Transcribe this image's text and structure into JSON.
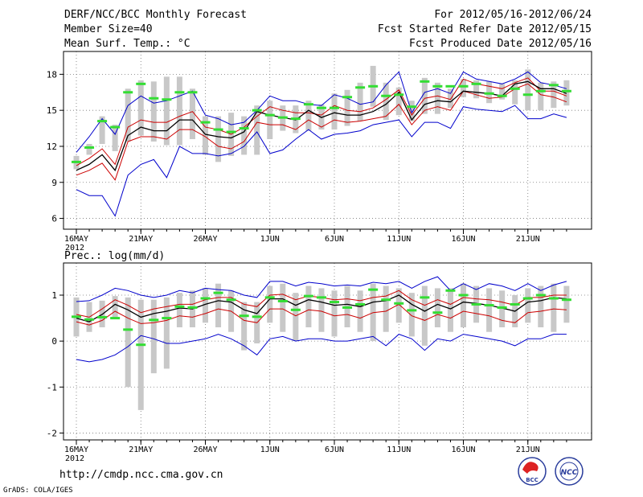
{
  "header": {
    "title": "DERF/NCC/BCC Monthly Forecast",
    "member_size": "Member Size=40",
    "variable": "Mean Surf. Temp.: °C",
    "period": "For 2012/05/16-2012/06/24",
    "started": "Fcst Started Refer Date 2012/05/15",
    "produced": "Fcst Produced Date 2012/05/16"
  },
  "footer": {
    "url": "http://cmdp.ncc.cma.gov.cn",
    "credit": "GrADS: COLA/IGES",
    "logo1_text": "BCC",
    "logo2_text": "NCC"
  },
  "colors": {
    "median": "#000000",
    "inner": "#cc0000",
    "outer": "#0000cc",
    "bar": "#c8c8c8",
    "marker": "#33dd33",
    "grid": "#777777"
  },
  "chart_data": [
    {
      "type": "line",
      "title": "Mean Surf. Temp.: °C",
      "x_tick_labels": [
        "16MAY",
        "21MAY",
        "26MAY",
        "1JUN",
        "6JUN",
        "11JUN",
        "16JUN",
        "21JUN"
      ],
      "x_year_label": "2012",
      "days": 39,
      "y_ticks": [
        6,
        9,
        12,
        15,
        18
      ],
      "ylim": [
        5.1,
        19.9
      ],
      "series": [
        {
          "name": "max",
          "values": [
            11.5,
            12.8,
            14.3,
            13.0,
            15.4,
            16.2,
            15.6,
            15.8,
            16.2,
            16.6,
            14.6,
            14.3,
            13.8,
            14.0,
            15.0,
            16.2,
            15.8,
            15.8,
            15.5,
            15.4,
            16.3,
            16.0,
            15.5,
            15.7,
            17.1,
            18.2,
            14.8,
            16.5,
            16.8,
            16.4,
            18.2,
            17.6,
            17.4,
            17.2,
            17.6,
            18.2,
            17.3,
            17.1,
            16.8
          ]
        },
        {
          "name": "upper",
          "values": [
            10.4,
            11.0,
            11.8,
            10.5,
            13.6,
            14.2,
            14.0,
            14.0,
            14.5,
            14.9,
            13.6,
            13.4,
            13.0,
            13.6,
            14.5,
            15.3,
            15.0,
            14.8,
            14.8,
            14.6,
            15.4,
            15.0,
            14.9,
            15.2,
            15.9,
            16.7,
            14.6,
            16.0,
            16.2,
            15.9,
            17.6,
            17.2,
            17.0,
            16.8,
            17.3,
            17.7,
            16.6,
            16.6,
            16.2
          ]
        },
        {
          "name": "median",
          "values": [
            10.0,
            10.5,
            11.3,
            10.0,
            12.9,
            13.6,
            13.3,
            13.3,
            14.2,
            14.2,
            13.0,
            12.8,
            12.7,
            13.2,
            14.9,
            14.6,
            14.4,
            14.2,
            15.0,
            14.4,
            14.8,
            14.6,
            14.6,
            14.9,
            15.5,
            16.5,
            14.2,
            15.5,
            15.8,
            15.7,
            16.6,
            16.5,
            16.4,
            16.2,
            17.2,
            17.4,
            16.8,
            16.8,
            16.4
          ]
        },
        {
          "name": "lower",
          "values": [
            9.6,
            10.0,
            10.6,
            9.2,
            12.4,
            12.8,
            12.8,
            12.6,
            13.4,
            13.4,
            12.8,
            12.0,
            11.8,
            12.4,
            14.0,
            13.8,
            13.8,
            13.4,
            14.2,
            13.6,
            14.2,
            14.0,
            14.1,
            14.3,
            14.5,
            15.5,
            13.8,
            15.0,
            15.3,
            15.0,
            16.6,
            16.3,
            16.0,
            16.1,
            16.8,
            17.2,
            16.3,
            16.1,
            15.7
          ]
        },
        {
          "name": "min",
          "values": [
            8.4,
            7.9,
            7.9,
            6.2,
            9.6,
            10.5,
            10.9,
            9.4,
            12.0,
            11.4,
            11.4,
            11.2,
            11.4,
            12.0,
            13.2,
            11.4,
            11.7,
            12.6,
            13.4,
            12.6,
            13.0,
            13.1,
            13.3,
            13.8,
            14.0,
            14.2,
            12.8,
            14.0,
            14.0,
            13.5,
            15.3,
            15.1,
            15.0,
            14.9,
            15.4,
            14.3,
            14.3,
            14.7,
            14.4
          ]
        },
        {
          "name": "observed",
          "values": [
            10.7,
            11.9,
            14.1,
            13.6,
            16.5,
            17.2,
            16.0,
            15.9,
            16.5,
            16.5,
            14.0,
            13.4,
            13.2,
            13.5,
            15.0,
            14.6,
            14.4,
            14.3,
            15.5,
            15.2,
            15.2,
            16.1,
            16.9,
            17.0,
            16.2,
            16.3,
            15.3,
            17.4,
            17.0,
            17.0,
            17.0,
            17.2,
            16.4,
            16.2,
            16.8,
            16.3,
            16.6,
            17.1,
            16.6
          ]
        },
        {
          "name": "box_top",
          "values": [
            11.2,
            12.2,
            14.5,
            13.8,
            16.8,
            17.5,
            17.4,
            17.8,
            17.8,
            16.8,
            14.5,
            14.5,
            14.8,
            14.5,
            15.4,
            15.8,
            15.4,
            15.4,
            15.8,
            15.5,
            16.4,
            16.7,
            17.3,
            18.7,
            17.3,
            16.9,
            15.8,
            17.7,
            17.3,
            16.8,
            17.6,
            17.5,
            17.4,
            17.2,
            17.5,
            18.4,
            17.3,
            17.4,
            17.5
          ]
        },
        {
          "name": "box_bottom",
          "values": [
            10.1,
            11.3,
            12.2,
            11.6,
            12.4,
            12.9,
            12.4,
            12.1,
            12.1,
            12.6,
            11.3,
            10.7,
            11.2,
            11.3,
            11.3,
            12.6,
            13.3,
            13.1,
            13.3,
            13.4,
            13.4,
            13.7,
            14.1,
            15.3,
            14.2,
            14.6,
            14.1,
            14.7,
            14.7,
            15.2,
            16.1,
            16.0,
            15.6,
            15.9,
            15.5,
            15.0,
            15.0,
            15.2,
            15.4
          ]
        }
      ]
    },
    {
      "type": "line",
      "title": "Prec.: log(mm/d)",
      "x_tick_labels": [
        "16MAY",
        "21MAY",
        "26MAY",
        "1JUN",
        "6JUN",
        "11JUN",
        "16JUN",
        "21JUN"
      ],
      "x_year_label": "2012",
      "days": 39,
      "y_ticks": [
        -2,
        -1,
        0,
        1
      ],
      "ylim": [
        -2.15,
        1.7
      ],
      "series": [
        {
          "name": "max",
          "values": [
            0.86,
            0.88,
            1.0,
            1.15,
            1.1,
            1.0,
            0.95,
            1.0,
            1.1,
            1.05,
            1.15,
            1.12,
            1.1,
            1.0,
            0.95,
            1.3,
            1.3,
            1.2,
            1.28,
            1.25,
            1.2,
            1.22,
            1.2,
            1.28,
            1.25,
            1.3,
            1.15,
            1.3,
            1.4,
            1.1,
            1.25,
            1.12,
            1.25,
            1.2,
            1.1,
            1.25,
            1.1,
            1.22,
            1.3
          ]
        },
        {
          "name": "upper",
          "values": [
            0.58,
            0.52,
            0.7,
            0.9,
            0.78,
            0.62,
            0.7,
            0.75,
            0.8,
            0.8,
            0.9,
            0.95,
            0.95,
            0.8,
            0.75,
            1.0,
            1.02,
            0.9,
            0.98,
            0.95,
            0.9,
            0.92,
            0.88,
            0.95,
            0.98,
            1.1,
            0.9,
            0.78,
            0.9,
            0.8,
            0.95,
            0.92,
            0.9,
            0.85,
            0.78,
            0.95,
            0.95,
            1.0,
            1.0
          ]
        },
        {
          "name": "median",
          "values": [
            0.5,
            0.42,
            0.58,
            0.8,
            0.68,
            0.52,
            0.6,
            0.65,
            0.72,
            0.7,
            0.8,
            0.88,
            0.85,
            0.68,
            0.6,
            0.92,
            0.92,
            0.78,
            0.9,
            0.85,
            0.78,
            0.8,
            0.75,
            0.85,
            0.88,
            1.0,
            0.8,
            0.65,
            0.8,
            0.7,
            0.85,
            0.82,
            0.78,
            0.72,
            0.65,
            0.85,
            0.88,
            0.95,
            0.92
          ]
        },
        {
          "name": "lower",
          "values": [
            0.42,
            0.35,
            0.45,
            0.65,
            0.5,
            0.38,
            0.4,
            0.45,
            0.55,
            0.52,
            0.6,
            0.7,
            0.65,
            0.45,
            0.4,
            0.7,
            0.7,
            0.55,
            0.68,
            0.65,
            0.55,
            0.58,
            0.5,
            0.62,
            0.65,
            0.8,
            0.55,
            0.45,
            0.58,
            0.5,
            0.65,
            0.6,
            0.55,
            0.45,
            0.4,
            0.62,
            0.65,
            0.7,
            0.68
          ]
        },
        {
          "name": "min",
          "values": [
            -0.4,
            -0.45,
            -0.4,
            -0.3,
            -0.12,
            0.12,
            0.05,
            -0.05,
            -0.05,
            0.0,
            0.05,
            0.15,
            0.05,
            -0.1,
            -0.3,
            0.05,
            0.1,
            0.0,
            0.05,
            0.05,
            0.0,
            0.0,
            0.05,
            0.1,
            -0.1,
            0.15,
            0.05,
            -0.2,
            0.05,
            0.0,
            0.15,
            0.1,
            0.05,
            0.0,
            -0.1,
            0.05,
            0.05,
            0.15,
            0.15
          ]
        },
        {
          "name": "observed",
          "values": [
            0.53,
            0.47,
            0.52,
            0.5,
            0.25,
            -0.08,
            0.46,
            0.5,
            0.75,
            0.73,
            0.93,
            1.05,
            0.9,
            0.55,
            0.53,
            0.95,
            0.87,
            0.68,
            0.98,
            0.95,
            0.85,
            0.73,
            0.8,
            1.12,
            0.9,
            0.82,
            0.67,
            0.95,
            0.62,
            1.1,
            1.0,
            0.8,
            0.78,
            0.73,
            0.8,
            0.93,
            1.0,
            0.93,
            0.9
          ]
        },
        {
          "name": "box_top",
          "values": [
            0.95,
            0.85,
            0.88,
            0.98,
            0.95,
            0.9,
            0.9,
            0.95,
            1.05,
            1.1,
            1.15,
            1.25,
            1.1,
            0.85,
            0.85,
            1.2,
            1.25,
            1.05,
            1.2,
            1.15,
            1.1,
            1.2,
            1.1,
            1.25,
            1.2,
            1.15,
            1.05,
            1.2,
            1.15,
            1.15,
            1.25,
            1.2,
            1.15,
            1.1,
            1.0,
            1.15,
            1.2,
            1.25,
            1.2
          ]
        },
        {
          "name": "box_bottom",
          "values": [
            0.1,
            0.2,
            0.3,
            0.5,
            -1.0,
            -1.5,
            -0.7,
            -0.6,
            0.3,
            0.3,
            0.4,
            0.3,
            0.2,
            -0.2,
            -0.05,
            0.4,
            0.2,
            0.0,
            0.3,
            0.2,
            0.1,
            0.3,
            0.2,
            0.0,
            0.2,
            0.4,
            0.1,
            -0.1,
            0.3,
            0.2,
            0.3,
            0.4,
            0.2,
            0.3,
            0.3,
            0.4,
            0.3,
            0.2,
            0.4
          ]
        }
      ]
    }
  ]
}
